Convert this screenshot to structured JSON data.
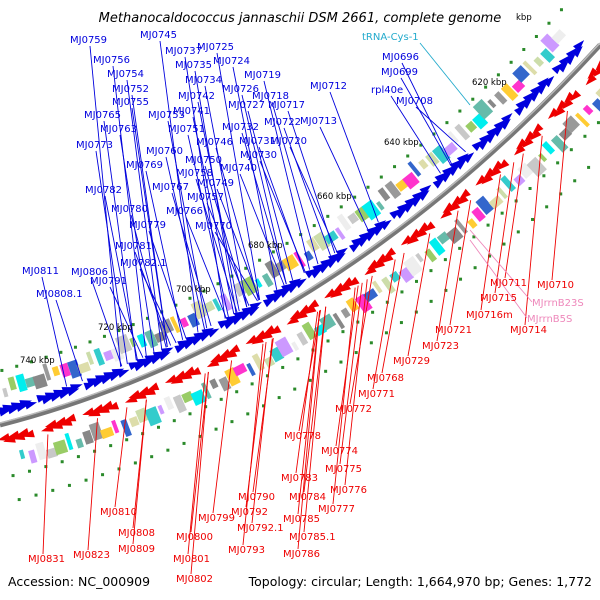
{
  "title": "Methanocaldococcus jannaschii DSM 2661, complete genome",
  "footer": {
    "accession": "Accession: NC_000909",
    "summary": "Topology: circular; Length: 1,664,970 bp; Genes: 1,772"
  },
  "colors": {
    "blue_strand": "#0000dd",
    "red_strand": "#ee0000",
    "trna": "#22aacc",
    "rrna": "#ee88bb",
    "backbone": "#777777",
    "gc_marker": "#228822"
  },
  "ticks": [
    "620 kbp",
    "640 kbp",
    "660 kbp",
    "680 kbp",
    "700 kbp",
    "720 kbp",
    "740 kbp"
  ],
  "top_tick_partial": "kbp",
  "forward_genes": [
    "MJ0759",
    "MJ0745",
    "MJ0737",
    "MJ0725",
    "MJ0756",
    "MJ0735",
    "MJ0724",
    "MJ0754",
    "MJ0734",
    "MJ0719",
    "MJ0752",
    "MJ0742",
    "MJ0726",
    "MJ0718",
    "MJ0755",
    "MJ0741",
    "MJ0727",
    "MJ0717",
    "MJ0765",
    "MJ0753",
    "MJ0722",
    "MJ0763",
    "MJ0751",
    "MJ0732",
    "MJ0713",
    "MJ0773",
    "MJ0746",
    "MJ0731",
    "MJ0720",
    "MJ0760",
    "MJ0730",
    "MJ0769",
    "MJ0750",
    "MJ0740",
    "MJ0758",
    "MJ0782",
    "MJ0767",
    "MJ0749",
    "MJ0757",
    "MJ0780",
    "MJ0766",
    "MJ0779",
    "MJ0770",
    "MJ0781",
    "MJ0782.1",
    "MJ0791",
    "MJ0811",
    "MJ0806",
    "MJ0808.1",
    "MJ0712",
    "MJ0696",
    "MJ0699",
    "MJ0708",
    "rpl40e"
  ],
  "trna_label": "tRNA-Cys-1",
  "reverse_genes": [
    "MJ0710",
    "MJ0711",
    "MJ0715",
    "MJ0716m",
    "MJ0714",
    "MJ0721",
    "MJ0723",
    "MJ0729",
    "MJ0768",
    "MJ0771",
    "MJ0772",
    "MJ0778",
    "MJ0774",
    "MJ0775",
    "MJ0776",
    "MJ0777",
    "MJ0783",
    "MJ0784",
    "MJ0785",
    "MJ0785.1",
    "MJ0786",
    "MJ0790",
    "MJ0792",
    "MJ0792.1",
    "MJ0793",
    "MJ0799",
    "MJ0800",
    "MJ0801",
    "MJ0802",
    "MJ0808",
    "MJ0809",
    "MJ0810",
    "MJ0823",
    "MJ0831"
  ],
  "rrna_labels": [
    "MJrrnB23S",
    "MJrrnB5S"
  ]
}
